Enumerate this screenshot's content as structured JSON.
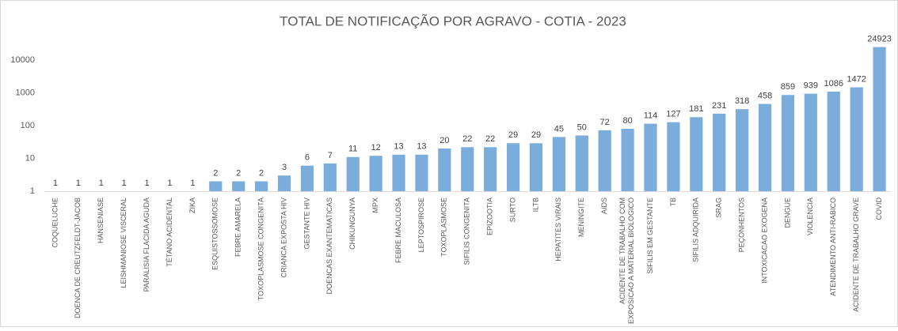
{
  "chart_data": {
    "type": "bar",
    "title": "TOTAL DE NOTIFICAÇÃO POR AGRAVO - COTIA - 2023",
    "categories": [
      "COQUELUCHE",
      "DOENCA DE CREUTZFELDT-JACOB",
      "HANSENIASE",
      "LEISHMANIOSE VISCERAL",
      "PARALISIA FLACIDA AGUDA",
      "TÉTANO ACIDENTAL",
      "ZIKA",
      "ESQUISTOSSOMOSE",
      "FEBRE AMARELA",
      "TOXOPLASMOSE CONGENITA",
      "CRIANCA EXPOSTA HIV",
      "GESTANTE HIV",
      "DOENCAS EXANTEMATICAS",
      "CHIKUNGUNYA",
      "MPX",
      "FEBRE MACULOSA",
      "LEPTOSPIROSE",
      "TOXOPLASMOSE",
      "SIFILIS CONGENITA",
      "EPIZOOTIA",
      "SURTO",
      "ILTB",
      "HEPATITES VIRAIS",
      "MENINGITE",
      "AIDS",
      "ACIDENTE DE TRABALHO COM\nEXPOSICAO A MATERIAL BIOLOGICO",
      "SIFILIS EM GESTANTE",
      "TB",
      "SIFILIS ADQUIRIDA",
      "SRAG",
      "PEÇONHENTOS",
      "INTOXICACAO EXOGENA",
      "DENGUE",
      "VIOLENCIA",
      "ATENDIMENTO ANTI-RABICO",
      "ACIDENTE DE TRABALHO GRAVE",
      "COVID"
    ],
    "values": [
      1,
      1,
      1,
      1,
      1,
      1,
      1,
      2,
      2,
      2,
      3,
      6,
      7,
      11,
      12,
      13,
      13,
      20,
      22,
      22,
      29,
      29,
      45,
      50,
      72,
      80,
      114,
      127,
      181,
      231,
      318,
      458,
      859,
      939,
      1086,
      1472,
      24923
    ],
    "color": "#7aacdc",
    "log_scale": true,
    "grid": false,
    "ylim": [
      1,
      40000
    ],
    "yticks": [
      1,
      10,
      100,
      1000,
      10000
    ]
  }
}
